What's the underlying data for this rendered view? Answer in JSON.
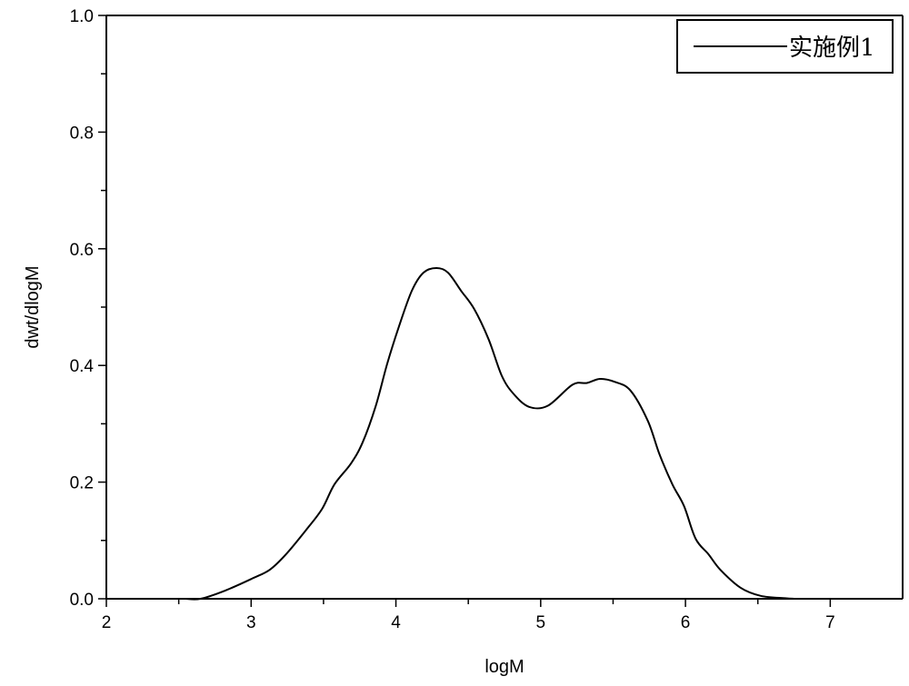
{
  "chart_data": {
    "type": "line",
    "title": "",
    "xlabel": "logM",
    "ylabel": "dwt/dlogM",
    "xlim": [
      2,
      7.5
    ],
    "ylim": [
      0,
      1.0
    ],
    "x_ticks": [
      "2",
      "3",
      "4",
      "5",
      "6",
      "7"
    ],
    "y_ticks": [
      "0.0",
      "0.2",
      "0.4",
      "0.6",
      "0.8",
      "1.0"
    ],
    "grid": false,
    "legend_position": "top-right",
    "line_color": "#000000",
    "series": [
      {
        "name": "实施例1",
        "x": [
          2.65,
          2.82,
          3.01,
          3.13,
          3.24,
          3.38,
          3.49,
          3.575,
          3.69,
          3.77,
          3.86,
          3.94,
          4.02,
          4.11,
          4.19,
          4.28,
          4.36,
          4.45,
          4.54,
          4.64,
          4.73,
          4.81,
          4.92,
          5.05,
          5.22,
          5.32,
          5.41,
          5.51,
          5.62,
          5.74,
          5.82,
          5.91,
          5.99,
          6.07,
          6.16,
          6.24,
          6.38,
          6.52,
          6.69
        ],
        "y": [
          0.0,
          0.014,
          0.035,
          0.05,
          0.076,
          0.118,
          0.154,
          0.196,
          0.232,
          0.268,
          0.33,
          0.403,
          0.466,
          0.528,
          0.559,
          0.567,
          0.559,
          0.528,
          0.497,
          0.445,
          0.383,
          0.352,
          0.329,
          0.331,
          0.367,
          0.37,
          0.377,
          0.372,
          0.357,
          0.305,
          0.248,
          0.196,
          0.159,
          0.103,
          0.076,
          0.05,
          0.019,
          0.005,
          0.001
        ]
      }
    ]
  }
}
